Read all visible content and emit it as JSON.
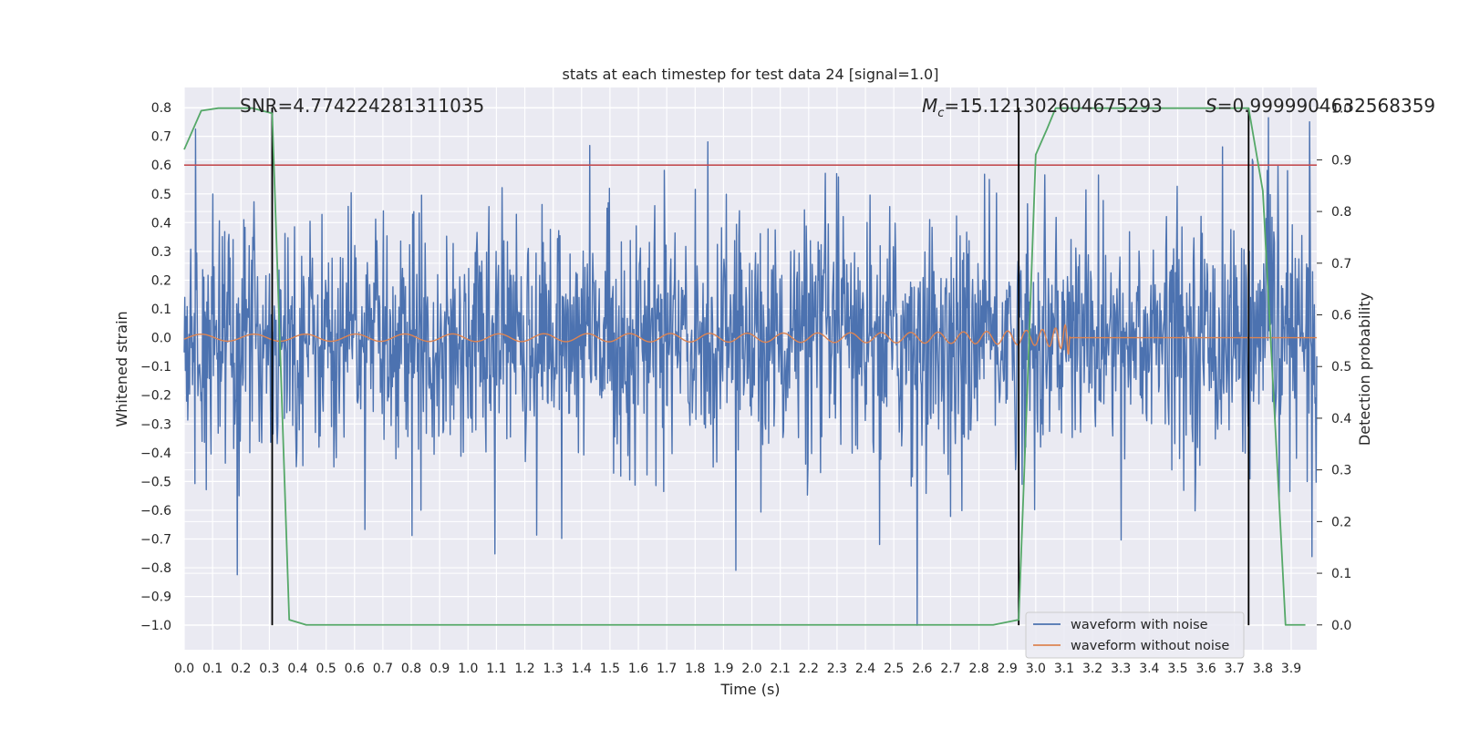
{
  "chart_data": {
    "type": "line",
    "title": "stats at each timestep for test data 24 [signal=1.0]",
    "xlabel": "Time (s)",
    "ylabel": "Whitened strain",
    "y2label": "Detection probability",
    "xlim": [
      0.0,
      3.99
    ],
    "ylim": [
      -1.085,
      0.87
    ],
    "y2lim": [
      -0.048,
      1.04
    ],
    "xticks": [
      "0.0",
      "0.1",
      "0.2",
      "0.3",
      "0.4",
      "0.5",
      "0.6",
      "0.7",
      "0.8",
      "0.9",
      "1.0",
      "1.1",
      "1.2",
      "1.3",
      "1.4",
      "1.5",
      "1.6",
      "1.7",
      "1.8",
      "1.9",
      "2.0",
      "2.1",
      "2.2",
      "2.3",
      "2.4",
      "2.5",
      "2.6",
      "2.7",
      "2.8",
      "2.9",
      "3.0",
      "3.1",
      "3.2",
      "3.3",
      "3.4",
      "3.5",
      "3.6",
      "3.7",
      "3.8",
      "3.9"
    ],
    "yticks": [
      "0.8",
      "0.7",
      "0.6",
      "0.5",
      "0.4",
      "0.3",
      "0.2",
      "0.1",
      "0.0",
      "−0.1",
      "−0.2",
      "−0.3",
      "−0.4",
      "−0.5",
      "−0.6",
      "−0.7",
      "−0.8",
      "−0.9",
      "−1.0"
    ],
    "y2ticks": [
      "1.0",
      "0.9",
      "0.8",
      "0.7",
      "0.6",
      "0.5",
      "0.4",
      "0.3",
      "0.2",
      "0.1",
      "0.0"
    ],
    "series": [
      {
        "name": "waveform with noise",
        "color": "#4c72b0",
        "axis": "left",
        "n_samples": 1900,
        "range": [
          -1.0,
          0.8
        ]
      },
      {
        "name": "waveform without noise",
        "color": "#dd8452",
        "axis": "left",
        "kind": "chirp",
        "merger_time": 3.12,
        "peak": 0.21
      },
      {
        "name": "detection probability",
        "color": "#55a868",
        "axis": "right",
        "x": [
          0.0,
          0.06,
          0.12,
          0.18,
          0.24,
          0.31,
          0.37,
          0.43,
          0.49,
          2.6,
          2.85,
          2.94,
          2.97,
          3.0,
          3.04,
          3.07,
          3.1,
          3.7,
          3.75,
          3.8,
          3.85,
          3.88,
          3.95
        ],
        "y": [
          0.92,
          0.995,
          1.0,
          1.0,
          1.0,
          0.99,
          0.01,
          0.0,
          0.0,
          0.0,
          0.0,
          0.01,
          0.45,
          0.91,
          0.96,
          1.0,
          1.0,
          1.0,
          1.0,
          0.84,
          0.32,
          0.0,
          0.0
        ]
      }
    ],
    "threshold": {
      "value": 0.6,
      "color": "#c44e52",
      "axis": "left"
    },
    "vlines": [
      0.31,
      2.94,
      3.75
    ],
    "annotations": {
      "snr": "SNR=4.774224281311035",
      "mc": "=15.121302604675293",
      "mc_symbol": "M",
      "mc_sub": "c",
      "s": "=0.9999904632568359",
      "s_symbol": "S"
    },
    "legend": {
      "placement": "lower-right",
      "entries": [
        "waveform with noise",
        "waveform without noise"
      ]
    }
  }
}
